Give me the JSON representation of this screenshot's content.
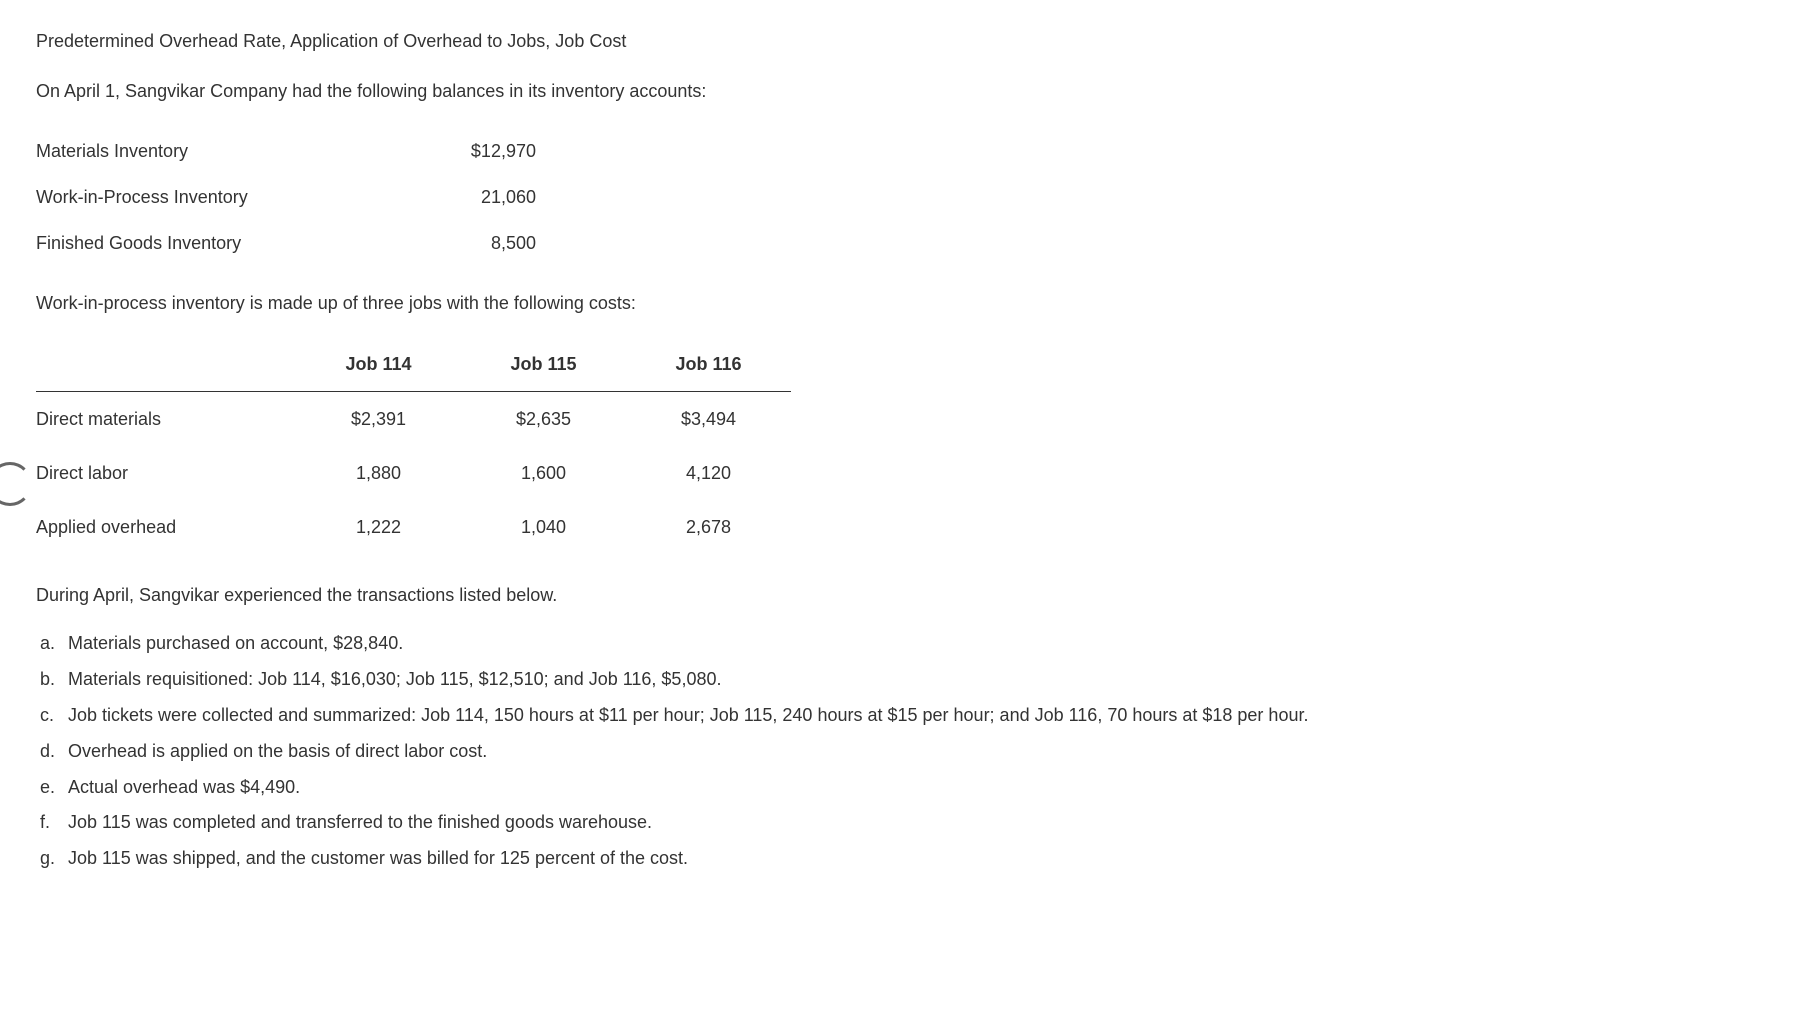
{
  "title": "Predetermined Overhead Rate, Application of Overhead to Jobs, Job Cost",
  "intro": "On April 1, Sangvikar Company had the following balances in its inventory accounts:",
  "balances": {
    "rows": [
      {
        "label": "Materials Inventory",
        "value": "$12,970"
      },
      {
        "label": "Work-in-Process Inventory",
        "value": "21,060"
      },
      {
        "label": "Finished Goods Inventory",
        "value": "8,500"
      }
    ]
  },
  "wip_intro": "Work-in-process inventory is made up of three jobs with the following costs:",
  "jobs_table": {
    "columns": [
      "Job 114",
      "Job 115",
      "Job 116"
    ],
    "rows": [
      {
        "label": "Direct materials",
        "values": [
          "$2,391",
          "$2,635",
          "$3,494"
        ]
      },
      {
        "label": "Direct labor",
        "values": [
          "1,880",
          "1,600",
          "4,120"
        ]
      },
      {
        "label": "Applied overhead",
        "values": [
          "1,222",
          "1,040",
          "2,678"
        ]
      }
    ]
  },
  "during": "During April, Sangvikar experienced the transactions listed below.",
  "transactions": [
    {
      "marker": "a.",
      "text": "Materials purchased on account, $28,840."
    },
    {
      "marker": "b.",
      "text": "Materials requisitioned: Job 114, $16,030; Job 115, $12,510; and Job 116, $5,080."
    },
    {
      "marker": "c.",
      "text": "Job tickets were collected and summarized: Job 114, 150 hours at $11 per hour; Job 115, 240 hours at $15 per hour; and Job 116, 70 hours at $18 per hour."
    },
    {
      "marker": "d.",
      "text": "Overhead is applied on the basis of direct labor cost."
    },
    {
      "marker": "e.",
      "text": "Actual overhead was $4,490."
    },
    {
      "marker": "f.",
      "text": "Job 115 was completed and transferred to the finished goods warehouse."
    },
    {
      "marker": "g.",
      "text": "Job 115 was shipped, and the customer was billed for 125 percent of the cost."
    }
  ],
  "colors": {
    "text": "#333333",
    "background": "#ffffff",
    "border": "#333333"
  },
  "typography": {
    "font_family": "Verdana, Geneva, sans-serif",
    "base_fontsize": 18
  }
}
